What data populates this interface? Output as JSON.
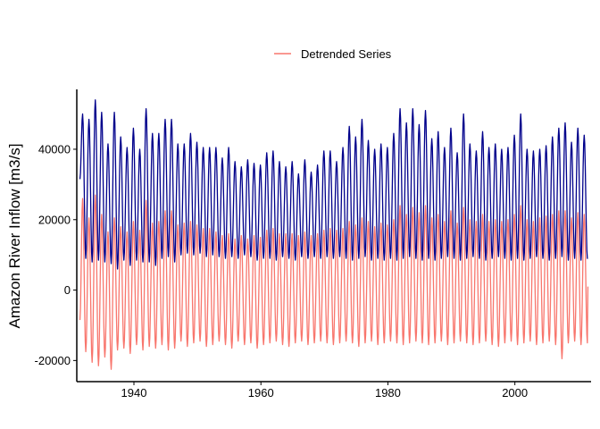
{
  "chart_data": {
    "type": "line",
    "title": "",
    "xlabel": "",
    "ylabel": "Amazon River Inflow [m3/s]",
    "xlim": [
      1931,
      2012
    ],
    "ylim": [
      -26000,
      57000
    ],
    "x_ticks": [
      1940,
      1960,
      1980,
      2000
    ],
    "x_tick_labels": [
      "1940",
      "1960",
      "1980",
      "2000"
    ],
    "y_ticks": [
      -20000,
      0,
      20000,
      40000
    ],
    "y_tick_labels": [
      "-20000",
      "0",
      "20000",
      "40000"
    ],
    "grid": false,
    "legend": {
      "position": "top",
      "entries": [
        "Detrended Series"
      ]
    },
    "cycle_peak_month": 5,
    "series": [
      {
        "name": "",
        "color": "#00008b",
        "style": "seasonal monthly flow",
        "x_start": 1931.5,
        "x_end": 2011.5,
        "start_value": 31500,
        "annual_peaks": [
          50000,
          48500,
          54000,
          50500,
          41500,
          50500,
          43500,
          40500,
          46000,
          40000,
          51500,
          44500,
          44500,
          48500,
          48500,
          41500,
          41500,
          44500,
          42000,
          40500,
          40500,
          40500,
          37500,
          40500,
          36500,
          35000,
          37000,
          36000,
          35500,
          39000,
          39500,
          36500,
          35000,
          36500,
          33000,
          37000,
          33500,
          35500,
          39500,
          39500,
          36500,
          40500,
          46500,
          43500,
          48500,
          42500,
          40000,
          41500,
          40500,
          44500,
          51500,
          47500,
          51500,
          47000,
          51000,
          43000,
          45000,
          40500,
          46000,
          39000,
          50000,
          41500,
          39500,
          45000,
          40500,
          41500,
          40000,
          40500,
          44000,
          50000,
          40000,
          39500,
          40000,
          41000,
          43500,
          46000,
          47500,
          42000,
          46000,
          44000
        ],
        "annual_troughs": [
          9000,
          8000,
          8500,
          8000,
          7500,
          6000,
          8500,
          7000,
          8500,
          8000,
          8000,
          7000,
          9000,
          9500,
          8000,
          10000,
          10500,
          10000,
          10500,
          9500,
          10000,
          9500,
          9000,
          9500,
          9000,
          10000,
          9500,
          8500,
          9000,
          9000,
          8500,
          9500,
          9000,
          8500,
          9500,
          9000,
          9500,
          9000,
          9500,
          9000,
          9500,
          9000,
          8500,
          9000,
          9500,
          8500,
          9000,
          8500,
          9000,
          8500,
          9000,
          9500,
          9000,
          8500,
          9000,
          8500,
          9000,
          9500,
          9000,
          8500,
          9000,
          9500,
          9000,
          8500,
          9000,
          9500,
          9000,
          8500,
          9000,
          8500,
          9000,
          9500,
          9000,
          8500,
          9000,
          9500,
          8500,
          9000,
          8500,
          9000
        ],
        "end_value": 9000
      },
      {
        "name": "Detrended Series",
        "color": "#f8766d",
        "style": "seasonal monthly flow",
        "x_start": 1931.5,
        "x_end": 2011.5,
        "start_value": -8500,
        "annual_peaks": [
          26000,
          20500,
          27000,
          21500,
          16500,
          20500,
          18000,
          16500,
          19500,
          17000,
          25500,
          19000,
          19500,
          22500,
          22500,
          18500,
          19000,
          19500,
          18500,
          17500,
          17500,
          16500,
          15500,
          16000,
          14500,
          15500,
          14500,
          15500,
          15000,
          17000,
          17500,
          16000,
          16000,
          16000,
          15500,
          16500,
          15500,
          16000,
          17000,
          17500,
          17000,
          17500,
          19500,
          18500,
          20500,
          19500,
          18000,
          19000,
          18500,
          20000,
          24000,
          21500,
          23500,
          22000,
          24000,
          20500,
          21500,
          19500,
          22500,
          19000,
          23500,
          20000,
          19500,
          21500,
          19500,
          20000,
          19500,
          20000,
          21500,
          24000,
          20000,
          19500,
          20500,
          21000,
          21500,
          22500,
          22500,
          20500,
          22000,
          21500
        ],
        "annual_troughs": [
          -17500,
          -20500,
          -21500,
          -19000,
          -22500,
          -17000,
          -16500,
          -18000,
          -15500,
          -17000,
          -16000,
          -16500,
          -15500,
          -17000,
          -16500,
          -14500,
          -16000,
          -15000,
          -14500,
          -16000,
          -15500,
          -14500,
          -15500,
          -16500,
          -14500,
          -15500,
          -15000,
          -16500,
          -15500,
          -15000,
          -14500,
          -15500,
          -16000,
          -15000,
          -14500,
          -15500,
          -15000,
          -14500,
          -15000,
          -15500,
          -15000,
          -14500,
          -15000,
          -16000,
          -15000,
          -14500,
          -15500,
          -15000,
          -14500,
          -15000,
          -15500,
          -15000,
          -14500,
          -15000,
          -15500,
          -15000,
          -14500,
          -15500,
          -15000,
          -14500,
          -15000,
          -15500,
          -15000,
          -14500,
          -15500,
          -16000,
          -15000,
          -14500,
          -15500,
          -15000,
          -14500,
          -15500,
          -15000,
          -14500,
          -15500,
          -19500,
          -15000,
          -14500,
          -15500,
          -15000
        ],
        "end_value": 1000
      }
    ]
  }
}
